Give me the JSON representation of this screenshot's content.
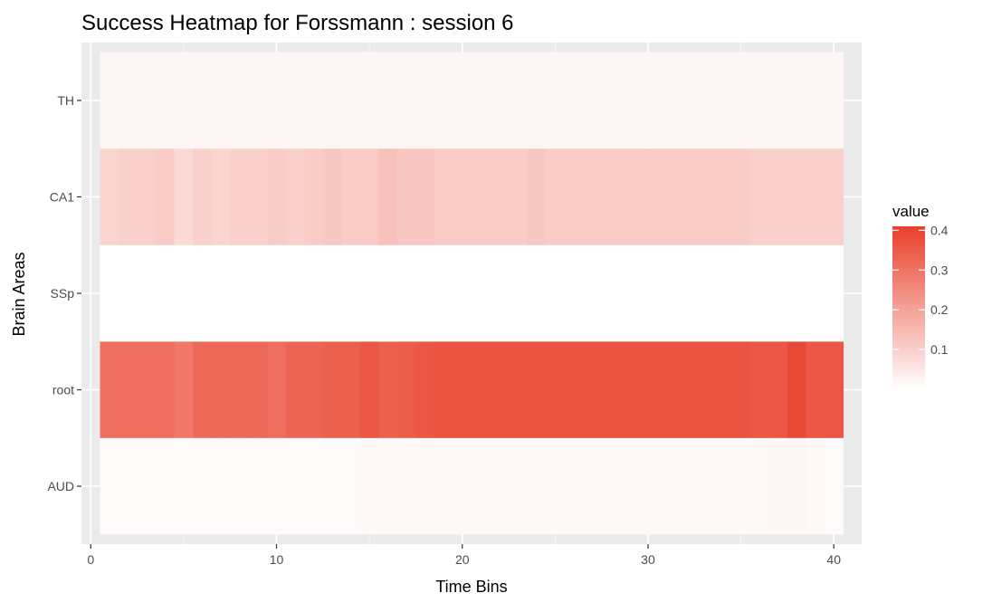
{
  "chart_data": {
    "type": "heatmap",
    "title": "Success Heatmap for Forssmann : session 6",
    "xlabel": "Time Bins",
    "ylabel": "Brain Areas",
    "x_ticks": [
      "0",
      "10",
      "20",
      "30",
      "40"
    ],
    "xlim": [
      -0.5,
      41.5
    ],
    "x_bins": [
      1,
      40
    ],
    "y_categories": [
      "AUD",
      "root",
      "SSp",
      "CA1",
      "TH"
    ],
    "rows": [
      {
        "area": "AUD",
        "values": [
          0.01,
          0.01,
          0.01,
          0.01,
          0.01,
          0.01,
          0.01,
          0.01,
          0.01,
          0.01,
          0.01,
          0.01,
          0.01,
          0.01,
          0.015,
          0.015,
          0.015,
          0.015,
          0.015,
          0.015,
          0.015,
          0.015,
          0.015,
          0.015,
          0.015,
          0.015,
          0.015,
          0.015,
          0.015,
          0.015,
          0.015,
          0.015,
          0.015,
          0.015,
          0.015,
          0.015,
          0.02,
          0.02,
          0.015,
          0.01
        ]
      },
      {
        "area": "root",
        "values": [
          0.31,
          0.31,
          0.31,
          0.31,
          0.29,
          0.32,
          0.32,
          0.32,
          0.32,
          0.31,
          0.33,
          0.33,
          0.34,
          0.34,
          0.36,
          0.34,
          0.35,
          0.36,
          0.37,
          0.37,
          0.37,
          0.37,
          0.37,
          0.37,
          0.37,
          0.37,
          0.37,
          0.37,
          0.37,
          0.37,
          0.37,
          0.37,
          0.37,
          0.37,
          0.37,
          0.36,
          0.36,
          0.39,
          0.36,
          0.36
        ]
      },
      {
        "area": "SSp",
        "values": [
          0,
          0,
          0,
          0,
          0,
          0,
          0,
          0,
          0,
          0,
          0,
          0,
          0,
          0,
          0,
          0,
          0,
          0,
          0,
          0,
          0,
          0,
          0,
          0,
          0,
          0,
          0,
          0,
          0,
          0,
          0,
          0,
          0,
          0,
          0,
          0,
          0,
          0,
          0,
          0
        ]
      },
      {
        "area": "CA1",
        "values": [
          0.09,
          0.1,
          0.1,
          0.11,
          0.08,
          0.1,
          0.09,
          0.1,
          0.1,
          0.11,
          0.1,
          0.11,
          0.12,
          0.11,
          0.11,
          0.13,
          0.12,
          0.12,
          0.11,
          0.11,
          0.11,
          0.11,
          0.11,
          0.12,
          0.11,
          0.11,
          0.11,
          0.11,
          0.11,
          0.11,
          0.11,
          0.11,
          0.11,
          0.11,
          0.11,
          0.1,
          0.1,
          0.1,
          0.1,
          0.1
        ]
      },
      {
        "area": "TH",
        "values": [
          0.02,
          0.02,
          0.02,
          0.02,
          0.02,
          0.02,
          0.02,
          0.02,
          0.02,
          0.02,
          0.02,
          0.02,
          0.02,
          0.02,
          0.02,
          0.02,
          0.02,
          0.02,
          0.02,
          0.02,
          0.02,
          0.02,
          0.02,
          0.02,
          0.02,
          0.02,
          0.02,
          0.02,
          0.02,
          0.02,
          0.02,
          0.02,
          0.02,
          0.02,
          0.02,
          0.02,
          0.02,
          0.02,
          0.02,
          0.02
        ]
      }
    ],
    "legend": {
      "title": "value",
      "placement": "right",
      "ticks": [
        "0.1",
        "0.2",
        "0.3",
        "0.4"
      ],
      "range": [
        0,
        0.41
      ],
      "color_low": "#ffffff",
      "color_high": "#e8402a"
    },
    "panel_background": "#ebebeb",
    "grid": true
  }
}
